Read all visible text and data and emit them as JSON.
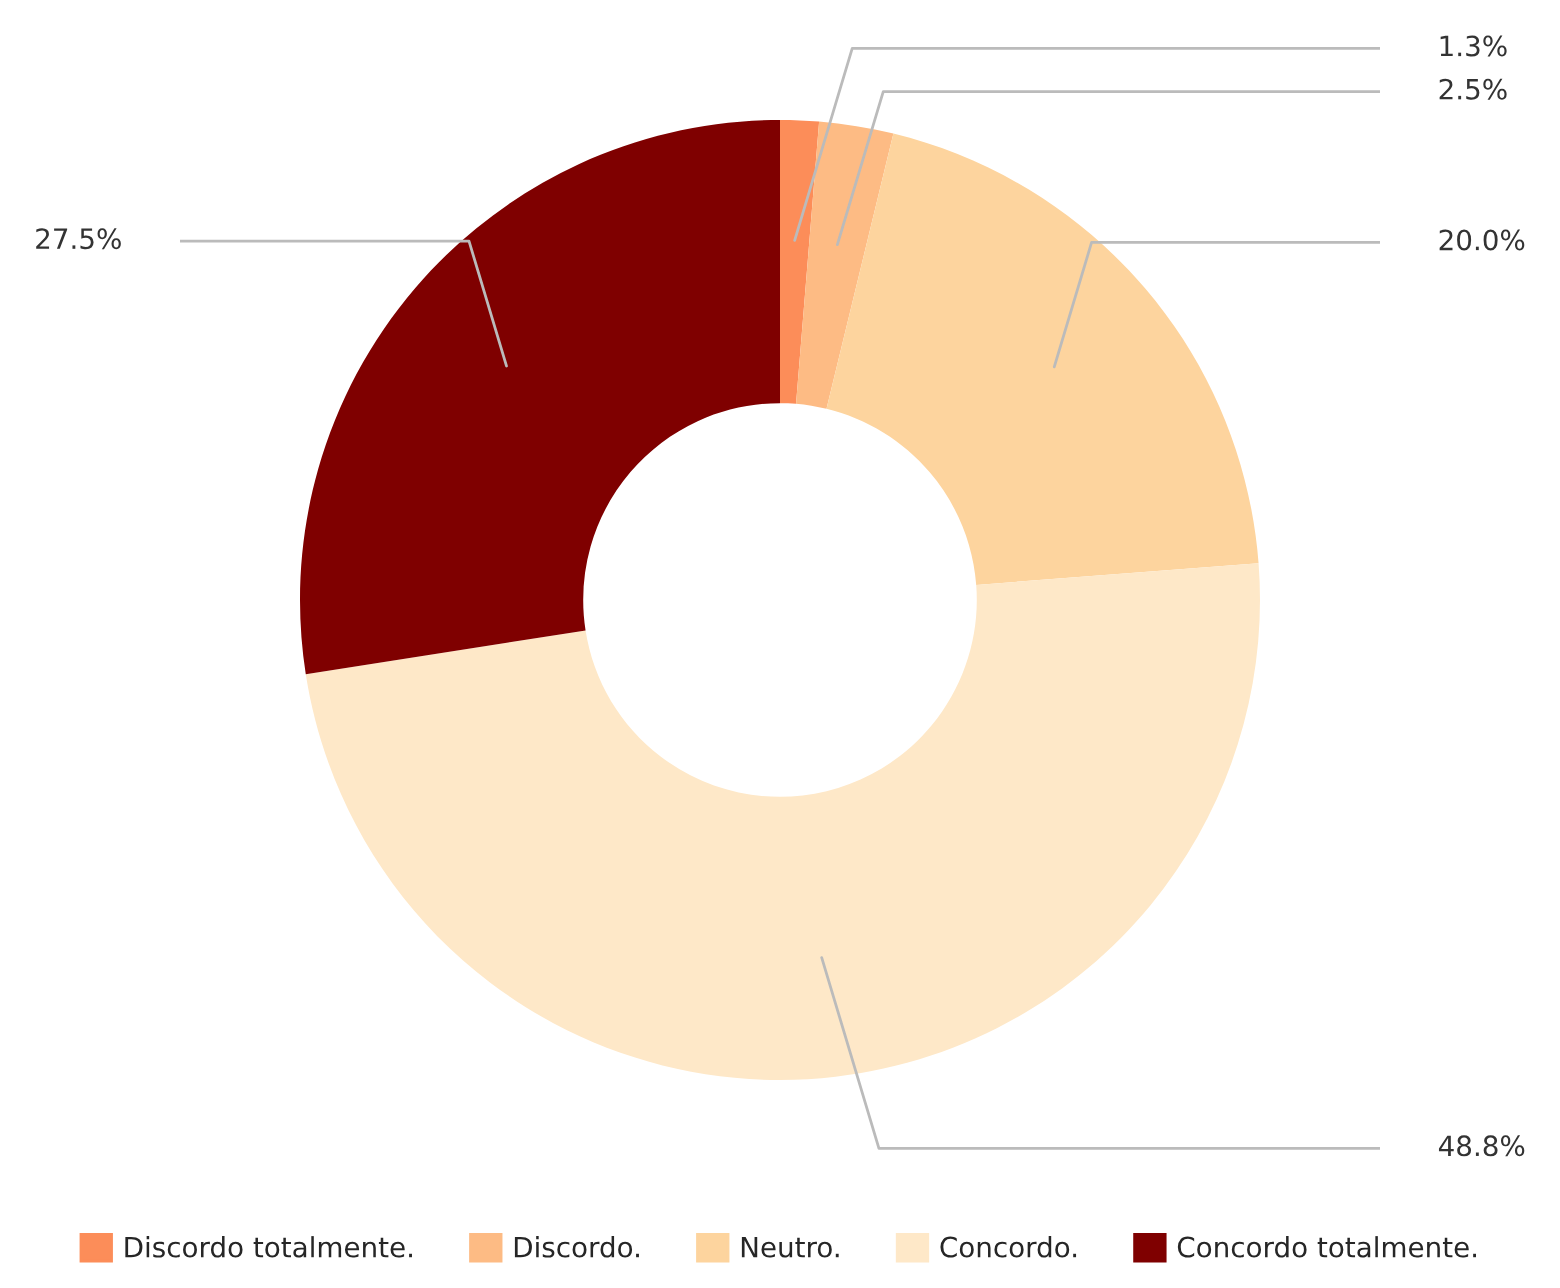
{
  "chart_data": {
    "type": "donut",
    "categories": [
      "Discordo totalmente.",
      "Discordo.",
      "Neutro.",
      "Concordo.",
      "Concordo totalmente."
    ],
    "values": [
      1.3,
      2.5,
      20.0,
      48.8,
      27.5
    ],
    "value_labels": [
      "1.3%",
      "2.5%",
      "20.0%",
      "48.8%",
      "27.5%"
    ],
    "colors": [
      "#fc8d59",
      "#fdbb84",
      "#fdd49e",
      "#fee8c8",
      "#7f0000"
    ],
    "legend": "bottom"
  }
}
